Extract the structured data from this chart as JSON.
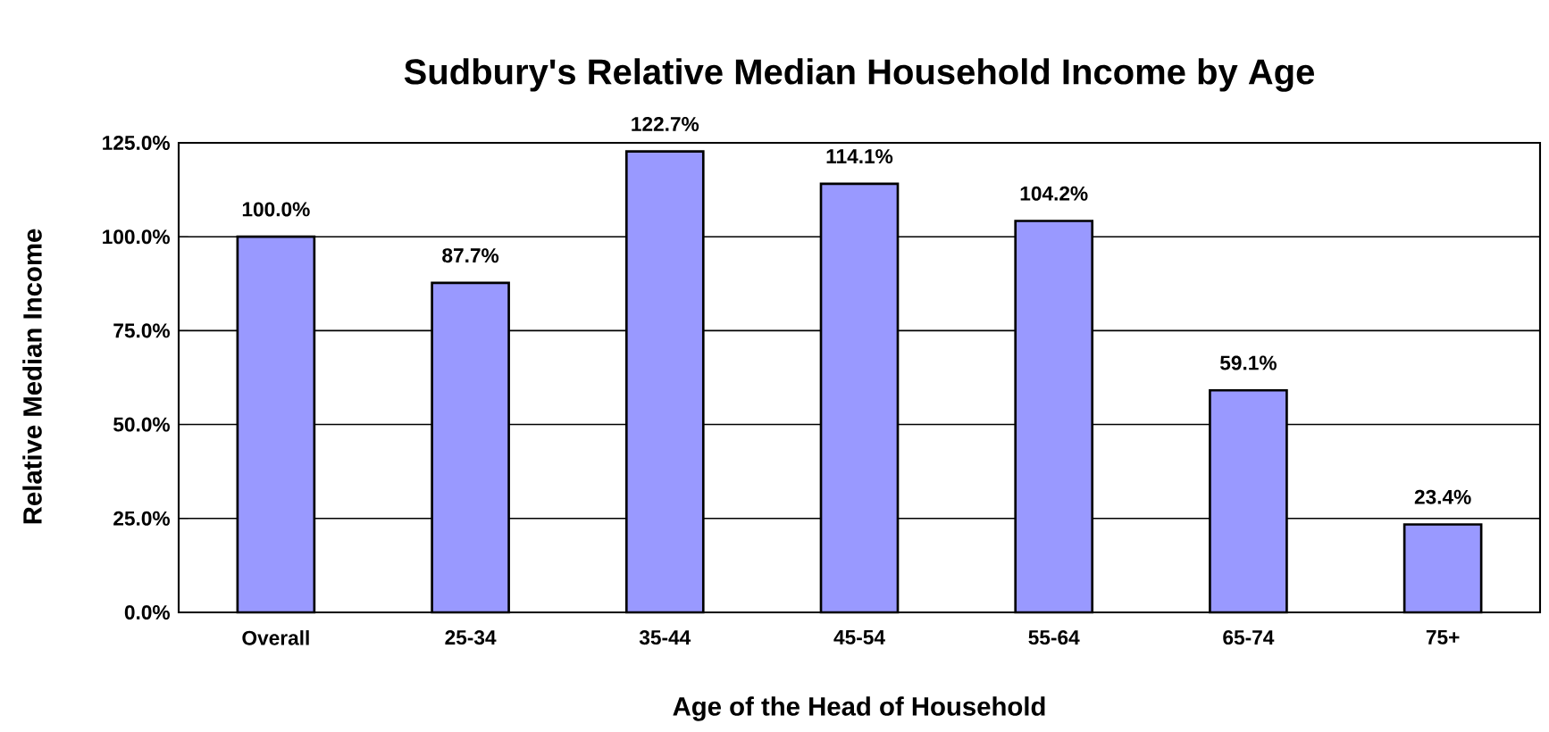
{
  "chart_data": {
    "type": "bar",
    "title": "Sudbury's Relative Median Household Income by Age",
    "xlabel": "Age of the Head of Household",
    "ylabel": "Relative Median Income",
    "categories": [
      "Overall",
      "25-34",
      "35-44",
      "45-54",
      "55-64",
      "65-74",
      "75+"
    ],
    "values": [
      100.0,
      87.7,
      122.7,
      114.1,
      104.2,
      59.1,
      23.4
    ],
    "value_labels": [
      "100.0%",
      "87.7%",
      "122.7%",
      "114.1%",
      "104.2%",
      "59.1%",
      "23.4%"
    ],
    "color": "#9999ff",
    "ylim": [
      0,
      125
    ],
    "yticks": [
      {
        "value": 0,
        "label": "0.0%"
      },
      {
        "value": 25,
        "label": "25.0%"
      },
      {
        "value": 50,
        "label": "50.0%"
      },
      {
        "value": 75,
        "label": "75.0%"
      },
      {
        "value": 100,
        "label": "100.0%"
      },
      {
        "value": 125,
        "label": "125.0%"
      }
    ],
    "grid": "y"
  }
}
